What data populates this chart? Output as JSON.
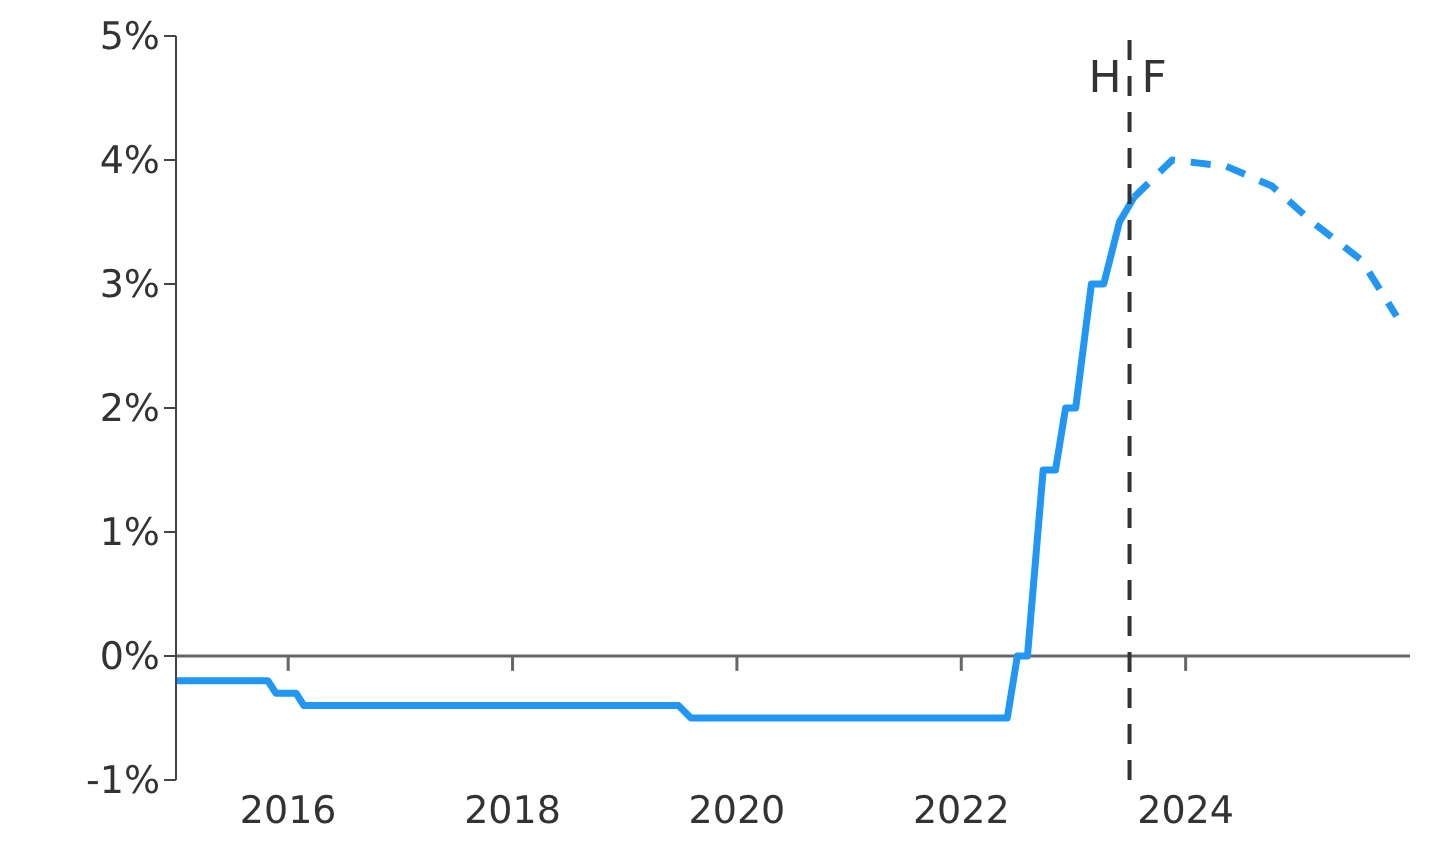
{
  "chart_data": {
    "type": "line",
    "xlim": [
      2015,
      2026
    ],
    "xticks": [
      2016,
      2018,
      2020,
      2022,
      2024
    ],
    "ylim": [
      -1,
      5
    ],
    "yticks": [
      {
        "value": -1,
        "label": "-1%"
      },
      {
        "value": 0,
        "label": "0%"
      },
      {
        "value": 1,
        "label": "1%"
      },
      {
        "value": 2,
        "label": "2%"
      },
      {
        "value": 3,
        "label": "3%"
      },
      {
        "value": 4,
        "label": "4%"
      },
      {
        "value": 5,
        "label": "5%"
      }
    ],
    "marker": "none",
    "series": [
      {
        "color": "#2196f3",
        "line_style": "solid",
        "x": [
          2015,
          2015.82,
          2015.89,
          2016.07,
          2016.14,
          2019.48,
          2019.59,
          2022.41,
          2022.5,
          2022.59,
          2022.73,
          2022.84,
          2022.93,
          2023.02,
          2023.16,
          2023.27,
          2023.41,
          2023.54
        ],
        "values": [
          -0.2,
          -0.2,
          -0.3,
          -0.3,
          -0.4,
          -0.4,
          -0.5,
          -0.5,
          0,
          0,
          1.5,
          1.5,
          2,
          2,
          3,
          3,
          3.5,
          3.7
        ]
      },
      {
        "color": "#2196f3",
        "line_style": "dashed",
        "x": [
          2023.54,
          2023.88,
          2024.36,
          2024.77,
          2025.13,
          2025.57,
          2025.88
        ],
        "values": [
          3.7,
          4,
          3.95,
          3.79,
          3.5,
          3.19,
          2.74
        ]
      }
    ],
    "ref_lines": [
      {
        "axis": "x",
        "value": 2023.5,
        "label": null,
        "color": "#333333",
        "line_style": "dashed"
      }
    ],
    "annotations": [
      "H",
      "F"
    ]
  }
}
